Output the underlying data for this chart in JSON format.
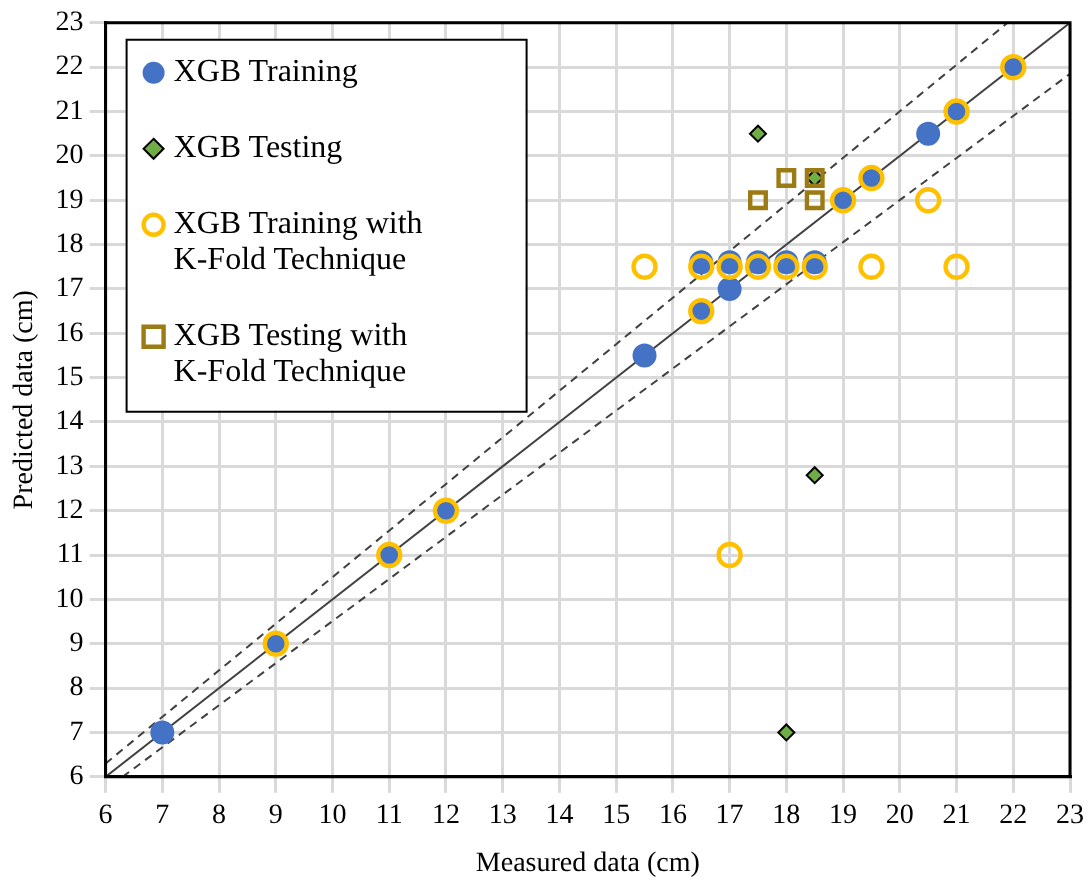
{
  "chart_data": {
    "type": "scatter",
    "xlabel": "Measured data (cm)",
    "ylabel": "Predicted data (cm)",
    "xlim": [
      6,
      23
    ],
    "ylim": [
      6,
      23
    ],
    "xticks": [
      6,
      7,
      8,
      9,
      10,
      11,
      12,
      13,
      14,
      15,
      16,
      17,
      18,
      19,
      20,
      21,
      22,
      23
    ],
    "yticks": [
      6,
      7,
      8,
      9,
      10,
      11,
      12,
      13,
      14,
      15,
      16,
      17,
      18,
      19,
      20,
      21,
      22,
      23
    ],
    "grid": true,
    "legend": "top left",
    "series": [
      {
        "type": "line",
        "color": "#404040",
        "line_style": "solid",
        "marker": "none",
        "x": [
          6,
          23
        ],
        "values": [
          6,
          23
        ]
      },
      {
        "type": "line",
        "color": "#404040",
        "line_style": "dashed",
        "marker": "none",
        "x": [
          6,
          21.9
        ],
        "values": [
          6.3,
          23
        ]
      },
      {
        "type": "line",
        "color": "#404040",
        "line_style": "dashed",
        "marker": "none",
        "x": [
          6.3,
          23
        ],
        "values": [
          6,
          21.85
        ]
      },
      {
        "name": "XGB Training",
        "color": "#4472c4",
        "marker": "circle",
        "x": [
          7,
          9,
          11,
          12,
          15.5,
          16.5,
          16.5,
          17,
          17,
          17.5,
          18,
          18.5,
          19,
          19.5,
          20.5,
          21,
          22
        ],
        "values": [
          7,
          9,
          11,
          12,
          15.5,
          16.5,
          17.6,
          17,
          17.6,
          17.6,
          17.6,
          17.6,
          19,
          19.5,
          20.5,
          21,
          22
        ]
      },
      {
        "name": "XGB Testing",
        "color": "#70ad47",
        "marker": "diamond",
        "x": [
          17.5,
          18.5,
          18.5,
          18
        ],
        "values": [
          20.5,
          19.5,
          12.8,
          7
        ]
      },
      {
        "name": "XGB Training with K-Fold Technique",
        "color": "#ffc000",
        "marker": "circle",
        "x": [
          9,
          11,
          12,
          16.5,
          15.5,
          16.5,
          17,
          17.5,
          18,
          18.5,
          19.5,
          21,
          19,
          19.5,
          20.5,
          21,
          22,
          17
        ],
        "values": [
          9,
          11,
          12,
          16.5,
          17.5,
          17.5,
          17.5,
          17.5,
          17.5,
          17.5,
          17.5,
          17.5,
          19,
          19.5,
          19,
          21,
          22,
          11
        ]
      },
      {
        "name": "XGB Testing with K-Fold Technique",
        "color": "#9c7a14",
        "marker": "square",
        "x": [
          17.5,
          18,
          18.5,
          18.5
        ],
        "values": [
          19,
          19.5,
          19.5,
          19
        ]
      }
    ]
  }
}
